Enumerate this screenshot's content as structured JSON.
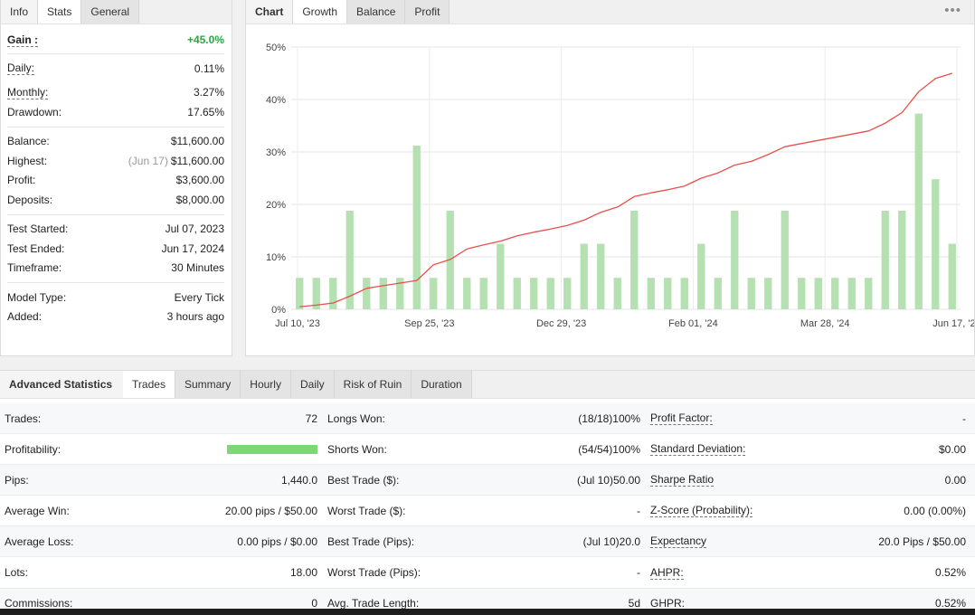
{
  "info": {
    "tabs": [
      "Info",
      "Stats",
      "General"
    ],
    "gain": {
      "label": "Gain :",
      "value": "+45.0%"
    },
    "group1": [
      {
        "label": "Daily:",
        "value": "0.11%"
      },
      {
        "label": "Monthly:",
        "value": "3.27%"
      },
      {
        "label": "Drawdown:",
        "value": "17.65%"
      }
    ],
    "balance": {
      "label": "Balance:",
      "value": "$11,600.00"
    },
    "highest": {
      "label": "Highest:",
      "date": "(Jun 17)",
      "value": "$11,600.00"
    },
    "profit": {
      "label": "Profit:",
      "value": "$3,600.00"
    },
    "deposits": {
      "label": "Deposits:",
      "value": "$8,000.00"
    },
    "group3": [
      {
        "label": "Test Started:",
        "value": "Jul 07, 2023"
      },
      {
        "label": "Test Ended:",
        "value": "Jun 17, 2024"
      },
      {
        "label": "Timeframe:",
        "value": "30 Minutes"
      }
    ],
    "group4": [
      {
        "label": "Model Type:",
        "value": "Every Tick"
      },
      {
        "label": "Added:",
        "value": "3 hours ago"
      }
    ]
  },
  "chart_panel": {
    "tabs": [
      "Chart",
      "Growth",
      "Balance",
      "Profit"
    ],
    "menu_icon": "more-dots-icon"
  },
  "chart_data": {
    "type": "bar",
    "y_ticks": [
      "50%",
      "40%",
      "30%",
      "20%",
      "10%",
      "0%"
    ],
    "ylim": [
      0,
      50
    ],
    "x_ticks": [
      "Jul 10, '23",
      "Sep 25, '23",
      "Dec 29, '23",
      "Feb 01, '24",
      "Mar 28, '24",
      "Jun 17, '24"
    ],
    "bar_values": [
      6,
      6,
      6,
      18.8,
      6,
      6,
      6,
      31.2,
      6,
      18.8,
      6,
      6,
      12.5,
      6,
      6,
      6,
      6,
      12.5,
      12.5,
      6,
      18.8,
      6,
      6,
      6,
      12.5,
      6,
      18.8,
      6,
      6,
      18.8,
      6,
      6,
      6,
      6,
      6,
      18.8,
      18.8,
      37.3,
      24.8,
      12.5
    ],
    "line_values": [
      0.5,
      0.8,
      1.2,
      2.5,
      4,
      4.5,
      5,
      5.5,
      8.5,
      9.5,
      11.5,
      12.3,
      13,
      14,
      14.7,
      15.3,
      16,
      17,
      18.5,
      19.5,
      21.5,
      22.2,
      22.8,
      23.5,
      25,
      26,
      27.5,
      28.2,
      29.5,
      31,
      31.6,
      32.2,
      32.8,
      33.4,
      34,
      35.5,
      37.5,
      41.5,
      44,
      45
    ],
    "bar_color": "#b5e0b1",
    "line_color": "#e8504a",
    "grid": true
  },
  "advanced": {
    "tabs": [
      "Advanced Statistics",
      "Trades",
      "Summary",
      "Hourly",
      "Daily",
      "Risk of Ruin",
      "Duration"
    ],
    "rows": [
      {
        "l1": "Trades:",
        "v1": "72",
        "l2": "Longs Won:",
        "m2": "(18/18)",
        "v2": "100%",
        "l3": "Profit Factor:",
        "v3": "-"
      },
      {
        "l1": "Profitability:",
        "v1": "",
        "l2": "Shorts Won:",
        "m2": "(54/54)",
        "v2": "100%",
        "l3": "Standard Deviation:",
        "v3": "$0.00"
      },
      {
        "l1": "Pips:",
        "v1": "1,440.0",
        "l2": "Best Trade ($):",
        "m2": "(Jul 10)",
        "v2": "50.00",
        "l3": "Sharpe Ratio",
        "v3": "0.00"
      },
      {
        "l1": "Average Win:",
        "v1": "20.00 pips / $50.00",
        "l2": "Worst Trade ($):",
        "m2": "",
        "v2": "-",
        "l3": "Z-Score (Probability):",
        "v3": "0.00 (0.00%)"
      },
      {
        "l1": "Average Loss:",
        "v1": "0.00 pips / $0.00",
        "l2": "Best Trade (Pips):",
        "m2": "(Jul 10)",
        "v2": "20.0",
        "l3": "Expectancy",
        "v3": "20.0 Pips / $50.00"
      },
      {
        "l1": "Lots:",
        "v1": "18.00",
        "l2": "Worst Trade (Pips):",
        "m2": "",
        "v2": "-",
        "l3": "AHPR:",
        "v3": "0.52%"
      },
      {
        "l1": "Commissions:",
        "v1": "0",
        "l2": "Avg. Trade Length:",
        "m2": "",
        "v2": "5d",
        "l3": "GHPR:",
        "v3": "0.52%"
      }
    ],
    "profitability_fraction": 1.0,
    "profitability_color": "#7ed57a"
  }
}
